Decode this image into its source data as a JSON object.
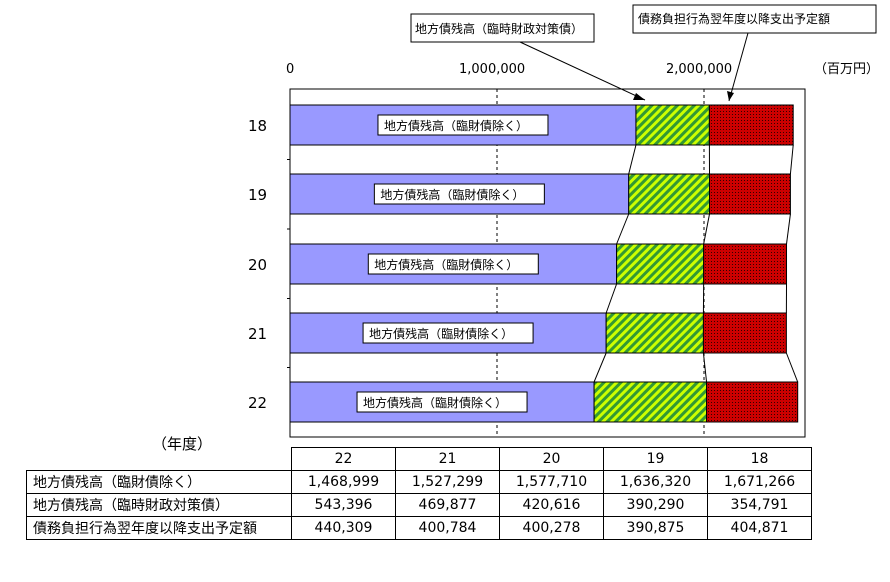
{
  "chart_data": {
    "type": "bar",
    "stacked": true,
    "orientation": "horizontal",
    "categories": [
      "18",
      "19",
      "20",
      "21",
      "22"
    ],
    "series": [
      {
        "name": "地方債残高（臨財債除く）",
        "color": "#9999ff",
        "values": [
          1671266,
          1636320,
          1577710,
          1527299,
          1468999
        ]
      },
      {
        "name": "地方債残高（臨時財政対策債）",
        "color": "#ccff00",
        "values": [
          354791,
          390290,
          420616,
          469877,
          543396
        ]
      },
      {
        "name": "債務負担行為翌年度以降支出予定額",
        "color": "#cc0000",
        "values": [
          404871,
          390875,
          400278,
          400784,
          440309
        ]
      }
    ],
    "x_ticks": [
      "0",
      "1,000,000",
      "2,000,000"
    ],
    "xlim": [
      0,
      2500000
    ],
    "unit": "（百万円）",
    "ylabel": "（年度）",
    "bar_inner_label": "地方債残高（臨財債除く）",
    "callouts": [
      "地方債残高（臨時財政対策債）",
      "債務負担行為翌年度以降支出予定額"
    ],
    "grid": "vertical dashed at 1,000,000 and 2,000,000"
  },
  "table": {
    "columns": [
      "22",
      "21",
      "20",
      "19",
      "18"
    ],
    "rows": [
      {
        "label": "地方債残高（臨財債除く）",
        "values": [
          "1,468,999",
          "1,527,299",
          "1,577,710",
          "1,636,320",
          "1,671,266"
        ]
      },
      {
        "label": "地方債残高（臨時財政対策債）",
        "values": [
          "543,396",
          "469,877",
          "420,616",
          "390,290",
          "354,791"
        ]
      },
      {
        "label": "債務負担行為翌年度以降支出予定額",
        "values": [
          "440,309",
          "400,784",
          "400,278",
          "390,875",
          "404,871"
        ]
      }
    ]
  }
}
